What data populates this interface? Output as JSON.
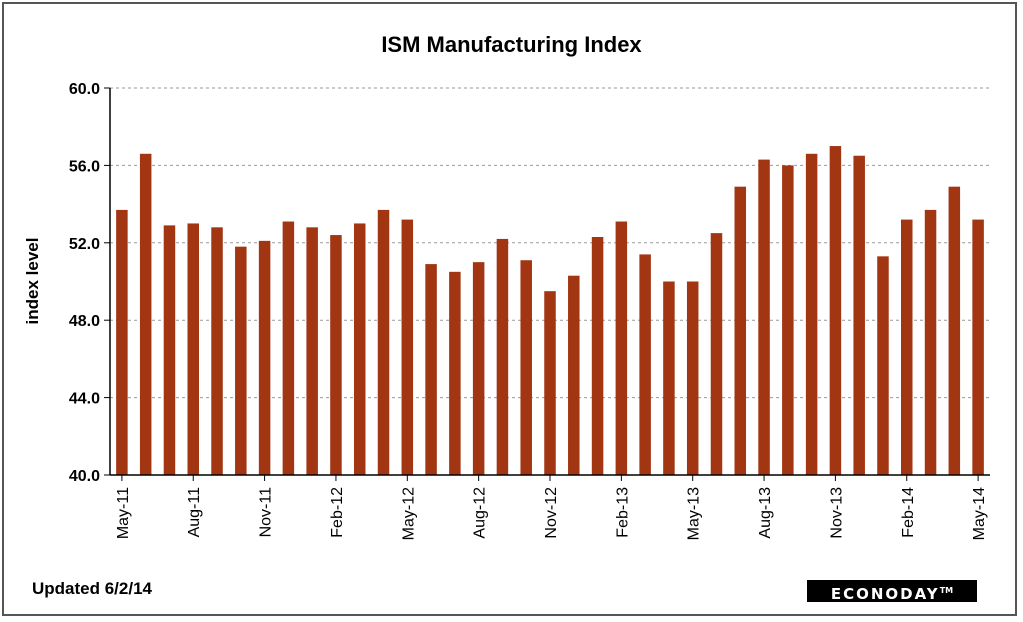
{
  "chart_data": {
    "type": "bar",
    "title": "ISM Manufacturing Index",
    "ylabel": "index level",
    "xlabel": "",
    "ylim": [
      40,
      60
    ],
    "yticks": [
      "40.0",
      "44.0",
      "48.0",
      "52.0",
      "56.0",
      "60.0"
    ],
    "ytick_values": [
      40,
      44,
      48,
      52,
      56,
      60
    ],
    "categories": [
      "May-11",
      "Jun-11",
      "Jul-11",
      "Aug-11",
      "Sep-11",
      "Oct-11",
      "Nov-11",
      "Dec-11",
      "Jan-12",
      "Feb-12",
      "Mar-12",
      "Apr-12",
      "May-12",
      "Jun-12",
      "Jul-12",
      "Aug-12",
      "Sep-12",
      "Oct-12",
      "Nov-12",
      "Dec-12",
      "Jan-13",
      "Feb-13",
      "Mar-13",
      "Apr-13",
      "May-13",
      "Jun-13",
      "Jul-13",
      "Aug-13",
      "Sep-13",
      "Oct-13",
      "Nov-13",
      "Dec-13",
      "Jan-14",
      "Feb-14",
      "Mar-14",
      "Apr-14",
      "May-14"
    ],
    "xtick_labels": {
      "0": "May-11",
      "3": "Aug-11",
      "6": "Nov-11",
      "9": "Feb-12",
      "12": "May-12",
      "15": "Aug-12",
      "18": "Nov-12",
      "21": "Feb-13",
      "24": "May-13",
      "27": "Aug-13",
      "30": "Nov-13",
      "33": "Feb-14",
      "36": "May-14"
    },
    "values": [
      53.7,
      56.6,
      52.9,
      53.0,
      52.8,
      51.8,
      52.1,
      53.1,
      52.8,
      52.4,
      53.0,
      53.7,
      53.2,
      50.9,
      50.5,
      51.0,
      52.2,
      51.1,
      49.5,
      50.3,
      52.3,
      53.1,
      51.4,
      50.0,
      50.0,
      52.5,
      54.9,
      56.3,
      56.0,
      56.6,
      57.0,
      56.5,
      51.3,
      53.2,
      53.7,
      54.9,
      53.2
    ],
    "bar_color": "#A23512",
    "grid": true,
    "legend": "none"
  },
  "footer": {
    "updated": "Updated  6/2/14",
    "logo": "ECONODAY",
    "logo_tm": "TM"
  }
}
